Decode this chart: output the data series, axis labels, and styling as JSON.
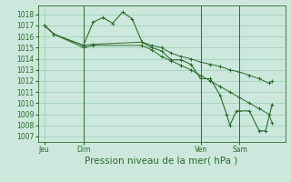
{
  "background_color": "#cce8dc",
  "grid_color": "#99ccb3",
  "line_color": "#2d6a2d",
  "marker_color": "#2d6a2d",
  "x_ticks_pos": [
    0,
    24,
    96,
    120
  ],
  "x_ticks_labels": [
    "Jeu",
    "Dim",
    "Ven",
    "Sam"
  ],
  "ylim": [
    1006.5,
    1018.8
  ],
  "yticks": [
    1007,
    1008,
    1009,
    1010,
    1011,
    1012,
    1013,
    1014,
    1015,
    1016,
    1017,
    1018
  ],
  "xlabel": "Pression niveau de la mer( hPa )",
  "series": [
    {
      "x": [
        0,
        6,
        24,
        30,
        36,
        42,
        48,
        54,
        60,
        66,
        72,
        78,
        84,
        90,
        96,
        102,
        108,
        112,
        114,
        118,
        120,
        126,
        132,
        136,
        140
      ],
      "y": [
        1017.0,
        1016.2,
        1015.2,
        1017.3,
        1017.7,
        1017.2,
        1018.2,
        1017.6,
        1015.5,
        1015.0,
        1014.7,
        1013.9,
        1013.9,
        1013.5,
        1012.2,
        1012.2,
        1010.7,
        1009.0,
        1008.0,
        1009.3,
        1009.3,
        1009.3,
        1007.5,
        1007.5,
        1009.9
      ]
    },
    {
      "x": [
        0,
        6,
        24,
        30,
        60,
        66,
        72,
        78,
        84,
        90,
        96,
        102,
        108,
        114,
        120,
        126,
        132,
        138,
        140
      ],
      "y": [
        1017.0,
        1016.2,
        1015.2,
        1015.3,
        1015.5,
        1015.2,
        1015.0,
        1014.5,
        1014.2,
        1014.0,
        1013.7,
        1013.5,
        1013.3,
        1013.0,
        1012.8,
        1012.5,
        1012.2,
        1011.8,
        1012.0
      ]
    },
    {
      "x": [
        0,
        6,
        24,
        30,
        60,
        66,
        72,
        78,
        84,
        90,
        96,
        102,
        108,
        114,
        120,
        126,
        132,
        138,
        140
      ],
      "y": [
        1017.0,
        1016.2,
        1015.0,
        1015.2,
        1015.2,
        1014.8,
        1014.2,
        1013.8,
        1013.4,
        1013.0,
        1012.5,
        1012.0,
        1011.5,
        1011.0,
        1010.5,
        1010.0,
        1009.5,
        1009.0,
        1008.2
      ]
    }
  ],
  "vlines_x": [
    24,
    96,
    120
  ],
  "tick_fontsize": 5.5,
  "xlabel_fontsize": 7.5
}
